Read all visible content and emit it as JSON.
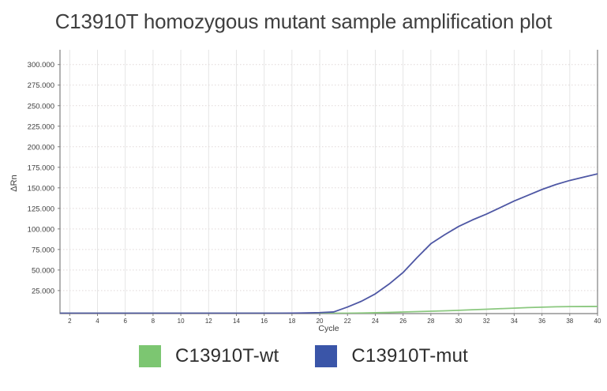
{
  "chart_data": {
    "type": "line",
    "title": "C13910T homozygous mutant sample amplification plot",
    "xlabel": "Cycle",
    "ylabel": "ΔRn",
    "x": [
      1,
      2,
      3,
      4,
      5,
      6,
      7,
      8,
      9,
      10,
      11,
      12,
      13,
      14,
      15,
      16,
      17,
      18,
      19,
      20,
      21,
      22,
      23,
      24,
      25,
      26,
      27,
      28,
      29,
      30,
      31,
      32,
      33,
      34,
      35,
      36,
      37,
      38,
      39,
      40
    ],
    "series": [
      {
        "name": "C13910T-wt",
        "color": "#7cc671",
        "line_color": "#8bc87f",
        "values": [
          -2.6,
          -2.6,
          -2.6,
          -2.6,
          -2.6,
          -2.6,
          -2.6,
          -2.6,
          -2.6,
          -2.6,
          -2.6,
          -2.6,
          -2.6,
          -2.6,
          -2.6,
          -2.6,
          -2.6,
          -2.6,
          -2.6,
          -2.6,
          -2.6,
          -2.5,
          -2.3,
          -2.0,
          -1.6,
          -1.1,
          -0.6,
          -0.1,
          0.4,
          1.0,
          1.7,
          2.3,
          3.0,
          3.6,
          4.3,
          4.8,
          5.3,
          5.5,
          5.6,
          5.7
        ]
      },
      {
        "name": "C13910T-mut",
        "color": "#3a55a8",
        "line_color": "#4e57a4",
        "values": [
          -2.5,
          -2.6,
          -2.6,
          -2.6,
          -2.6,
          -2.6,
          -2.6,
          -2.6,
          -2.6,
          -2.6,
          -2.6,
          -2.6,
          -2.6,
          -2.6,
          -2.6,
          -2.5,
          -2.5,
          -2.4,
          -2.2,
          -1.8,
          -1.0,
          5,
          12,
          21,
          33,
          47,
          65,
          82,
          93,
          103,
          111,
          118,
          126,
          134,
          141,
          148,
          154,
          159,
          163,
          167
        ]
      }
    ],
    "xlim": [
      1.3,
      40
    ],
    "ylim": [
      -3,
      318
    ],
    "xticks": {
      "start": 2,
      "end": 40,
      "step": 2
    },
    "yticks": {
      "start": 25,
      "end": 300,
      "step": 25,
      "suffix": ".000"
    },
    "grid": true,
    "legend_position": "bottom",
    "colors": {
      "grid_vertical": "#e5e5e5",
      "grid_horizontal": "#e0d8d8",
      "spine": "#7e7e7e",
      "tick_text": "#3c3c3c"
    }
  }
}
